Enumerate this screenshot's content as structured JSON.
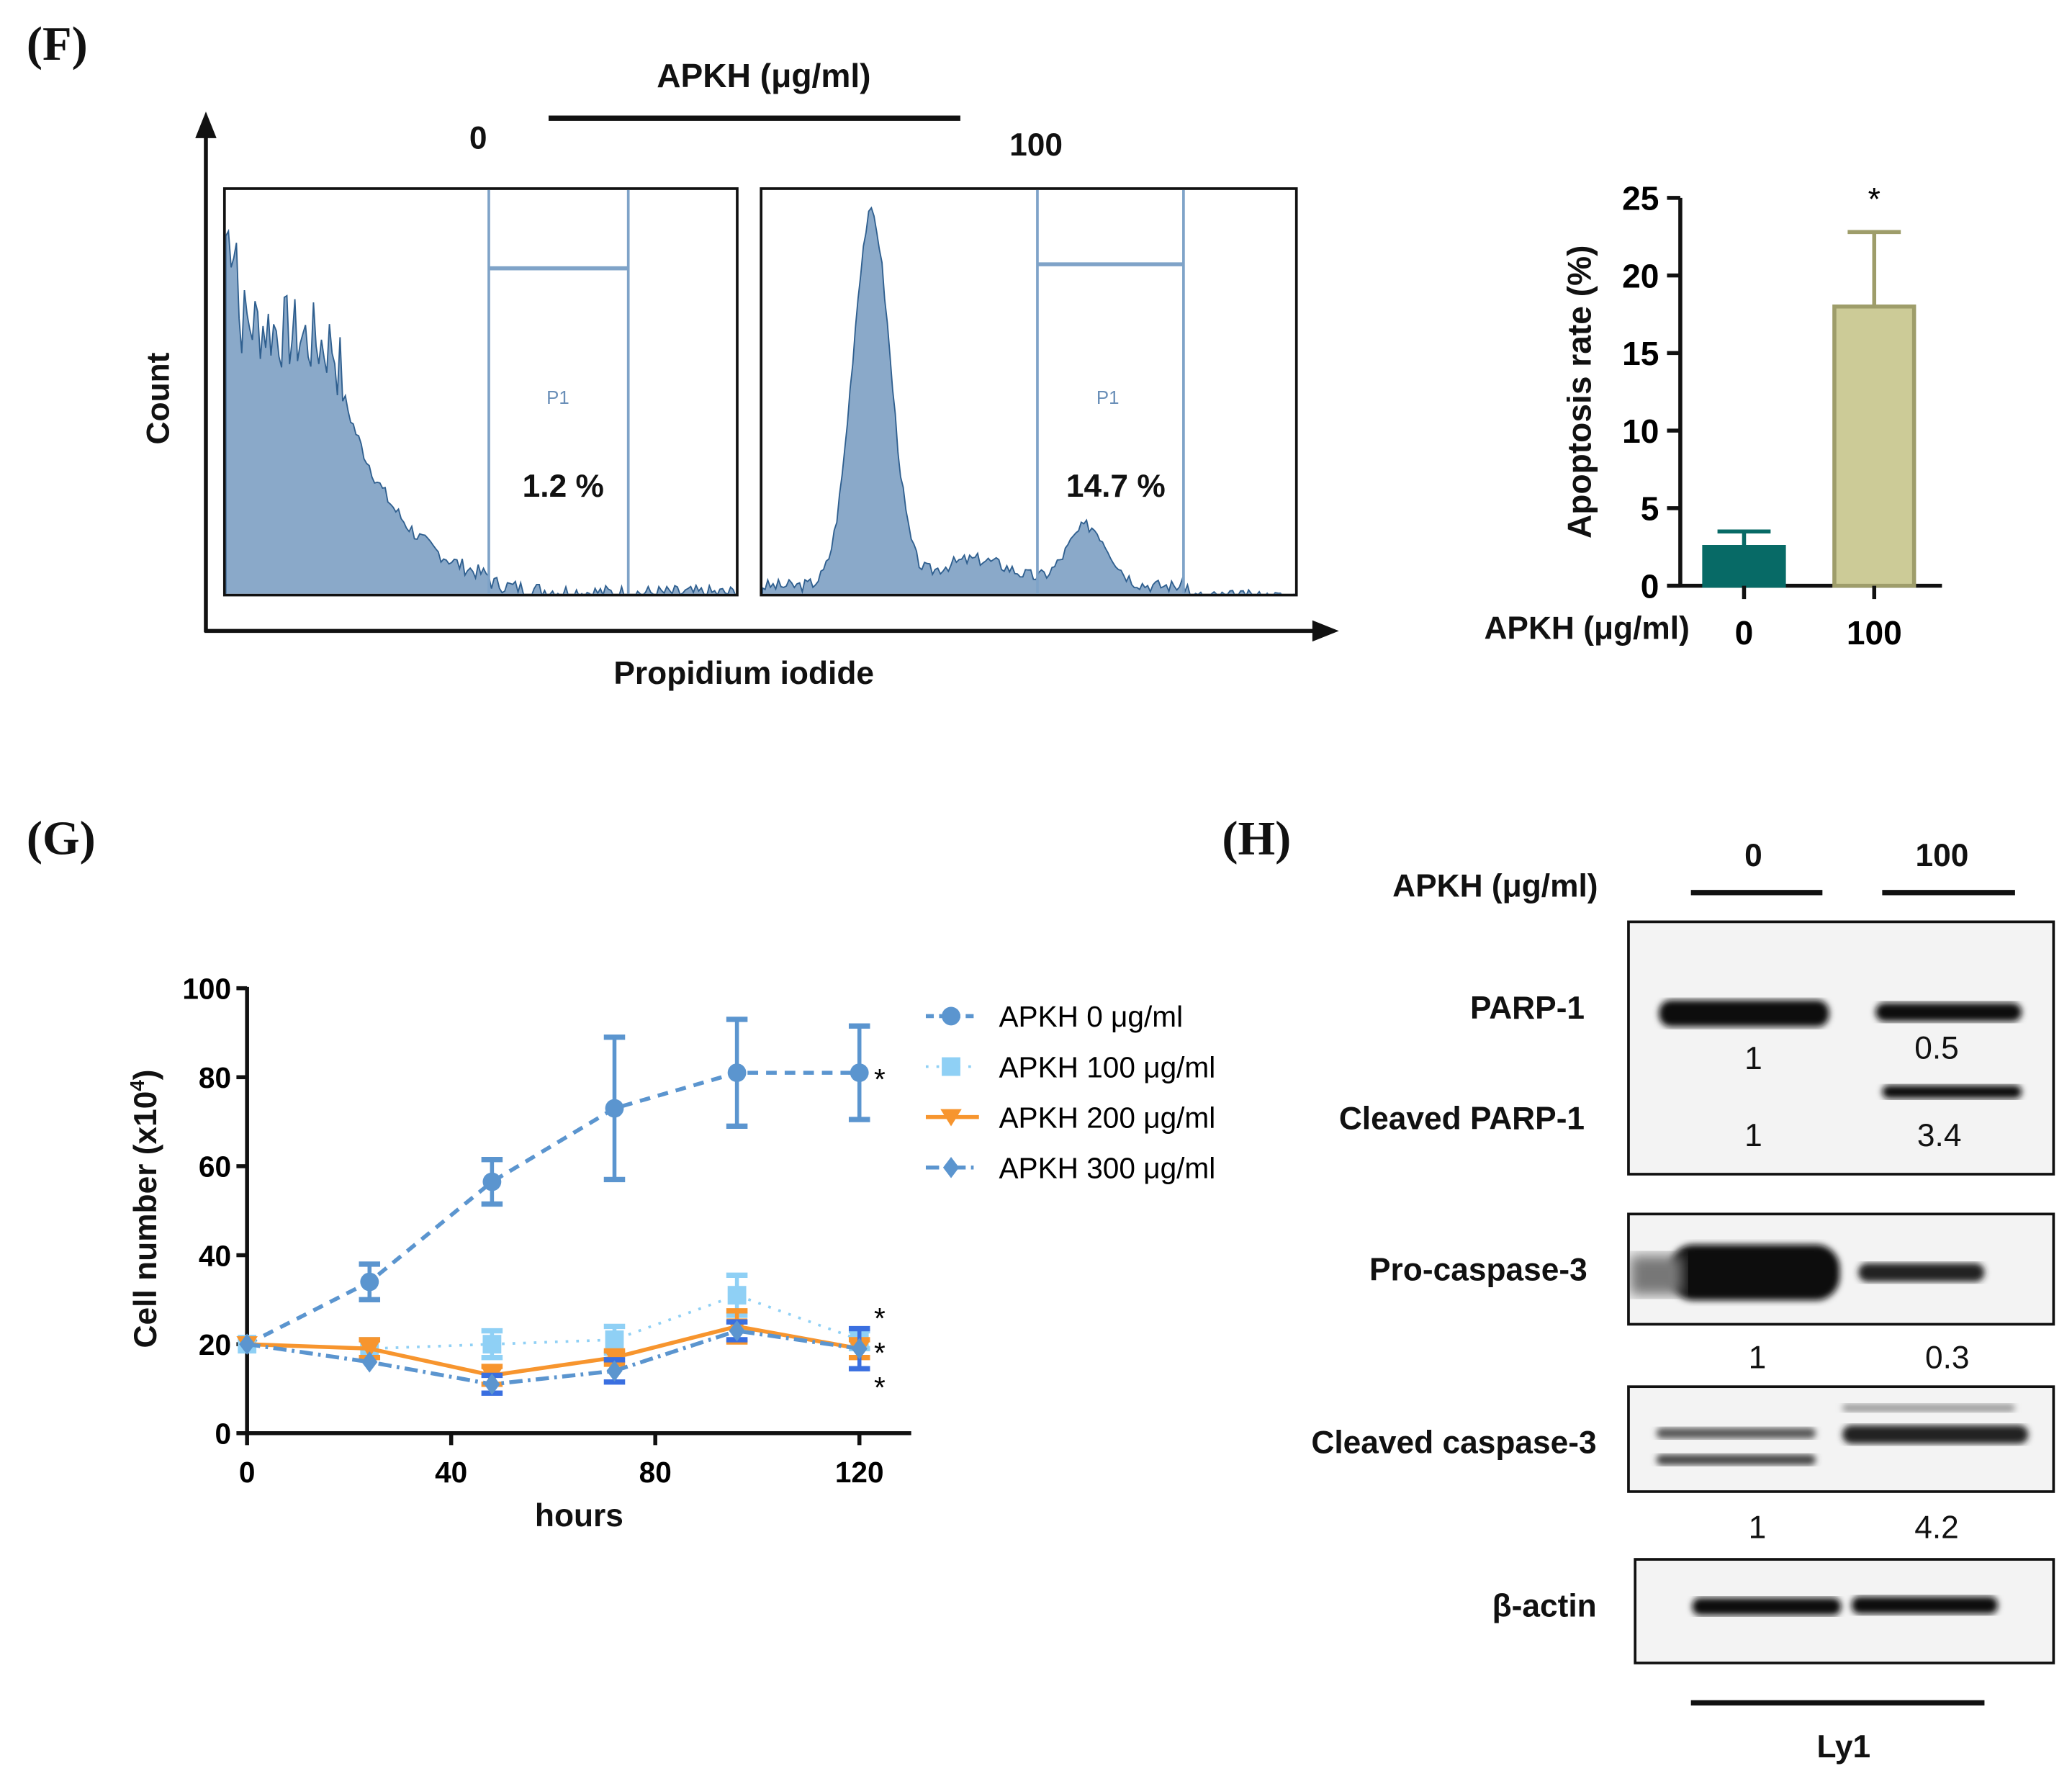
{
  "panels": {
    "f": "(F)",
    "g": "(G)",
    "h": "(H)"
  },
  "flow": {
    "treatment_label": "APKH (μg/ml)",
    "y_label": "Count",
    "x_label": "Propidium iodide",
    "gate_label": "P1",
    "samples": [
      {
        "dose": "0",
        "percent": "1.2 %"
      },
      {
        "dose": "100",
        "percent": "14.7 %"
      }
    ],
    "fill_color": "#8aa9c9",
    "line_color": "#2f5f8f"
  },
  "chart_data": [
    {
      "type": "bar",
      "title": "",
      "xlabel": "APKH (μg/ml)",
      "ylabel": "Apoptosis rate (%)",
      "categories": [
        "0",
        "100"
      ],
      "values": [
        2.5,
        18.0
      ],
      "errors": [
        1.0,
        4.8
      ],
      "colors": [
        "#076a66",
        "#cccb97"
      ],
      "edge_colors": [
        "#076a66",
        "#9e9d6a"
      ],
      "ylim": [
        0,
        25
      ],
      "yticks": [
        0,
        5,
        10,
        15,
        20,
        25
      ],
      "annotations": [
        {
          "category": "100",
          "text": "*"
        }
      ],
      "grid": false
    },
    {
      "type": "line",
      "xlabel": "hours",
      "ylabel": "Cell number (x10",
      "ylabel_sup": "4",
      "ylabel_end": ")",
      "x": [
        0,
        24,
        48,
        72,
        96,
        120
      ],
      "xlim": [
        0,
        130
      ],
      "ylim": [
        0,
        100
      ],
      "xticks": [
        0,
        40,
        80,
        120
      ],
      "yticks": [
        0,
        20,
        40,
        60,
        80,
        100
      ],
      "legend_position": "top-right",
      "grid": false,
      "series": [
        {
          "name": "APKH 0 μg/ml",
          "values": [
            20,
            34,
            56.5,
            73,
            81,
            81
          ],
          "errors": [
            1,
            4,
            5,
            16,
            12,
            10.5
          ],
          "color": "#5b95cf",
          "marker": "circle",
          "dash": "8 6",
          "star": "*"
        },
        {
          "name": "APKH 100 μg/ml",
          "values": [
            20,
            19,
            20,
            21,
            31,
            21
          ],
          "errors": [
            1,
            2,
            3,
            3,
            4.5,
            2
          ],
          "color": "#8fd0f5",
          "marker": "square",
          "dash": "2 6",
          "star": "*"
        },
        {
          "name": "APKH 200 μg/ml",
          "values": [
            20,
            19,
            13,
            17,
            24,
            19
          ],
          "errors": [
            1,
            2,
            2,
            1.5,
            3.5,
            2
          ],
          "color": "#f7952e",
          "marker": "triangle-down",
          "dash": "",
          "star": "*"
        },
        {
          "name": "APKH 300 μg/ml",
          "values": [
            20,
            16,
            11,
            14,
            23,
            19
          ],
          "errors": [
            1,
            1,
            2,
            2.5,
            2,
            4.5
          ],
          "color": "#5b95cf",
          "marker": "diamond",
          "dash": "10 4 2 4",
          "star": "*",
          "err_color": "#3a6fe0"
        }
      ]
    }
  ],
  "western": {
    "treatment_label": "APKH (μg/ml)",
    "doses": [
      "0",
      "100"
    ],
    "cell_line": "Ly1",
    "bands": [
      {
        "label": "PARP-1",
        "quant": [
          "1",
          "0.5"
        ]
      },
      {
        "label": "Cleaved PARP-1",
        "quant": [
          "1",
          "3.4"
        ]
      },
      {
        "label": "Pro-caspase-3",
        "quant": [
          "1",
          "0.3"
        ]
      },
      {
        "label": "Cleaved caspase-3",
        "quant": [
          "1",
          "4.2"
        ]
      },
      {
        "label": "β-actin"
      }
    ]
  }
}
